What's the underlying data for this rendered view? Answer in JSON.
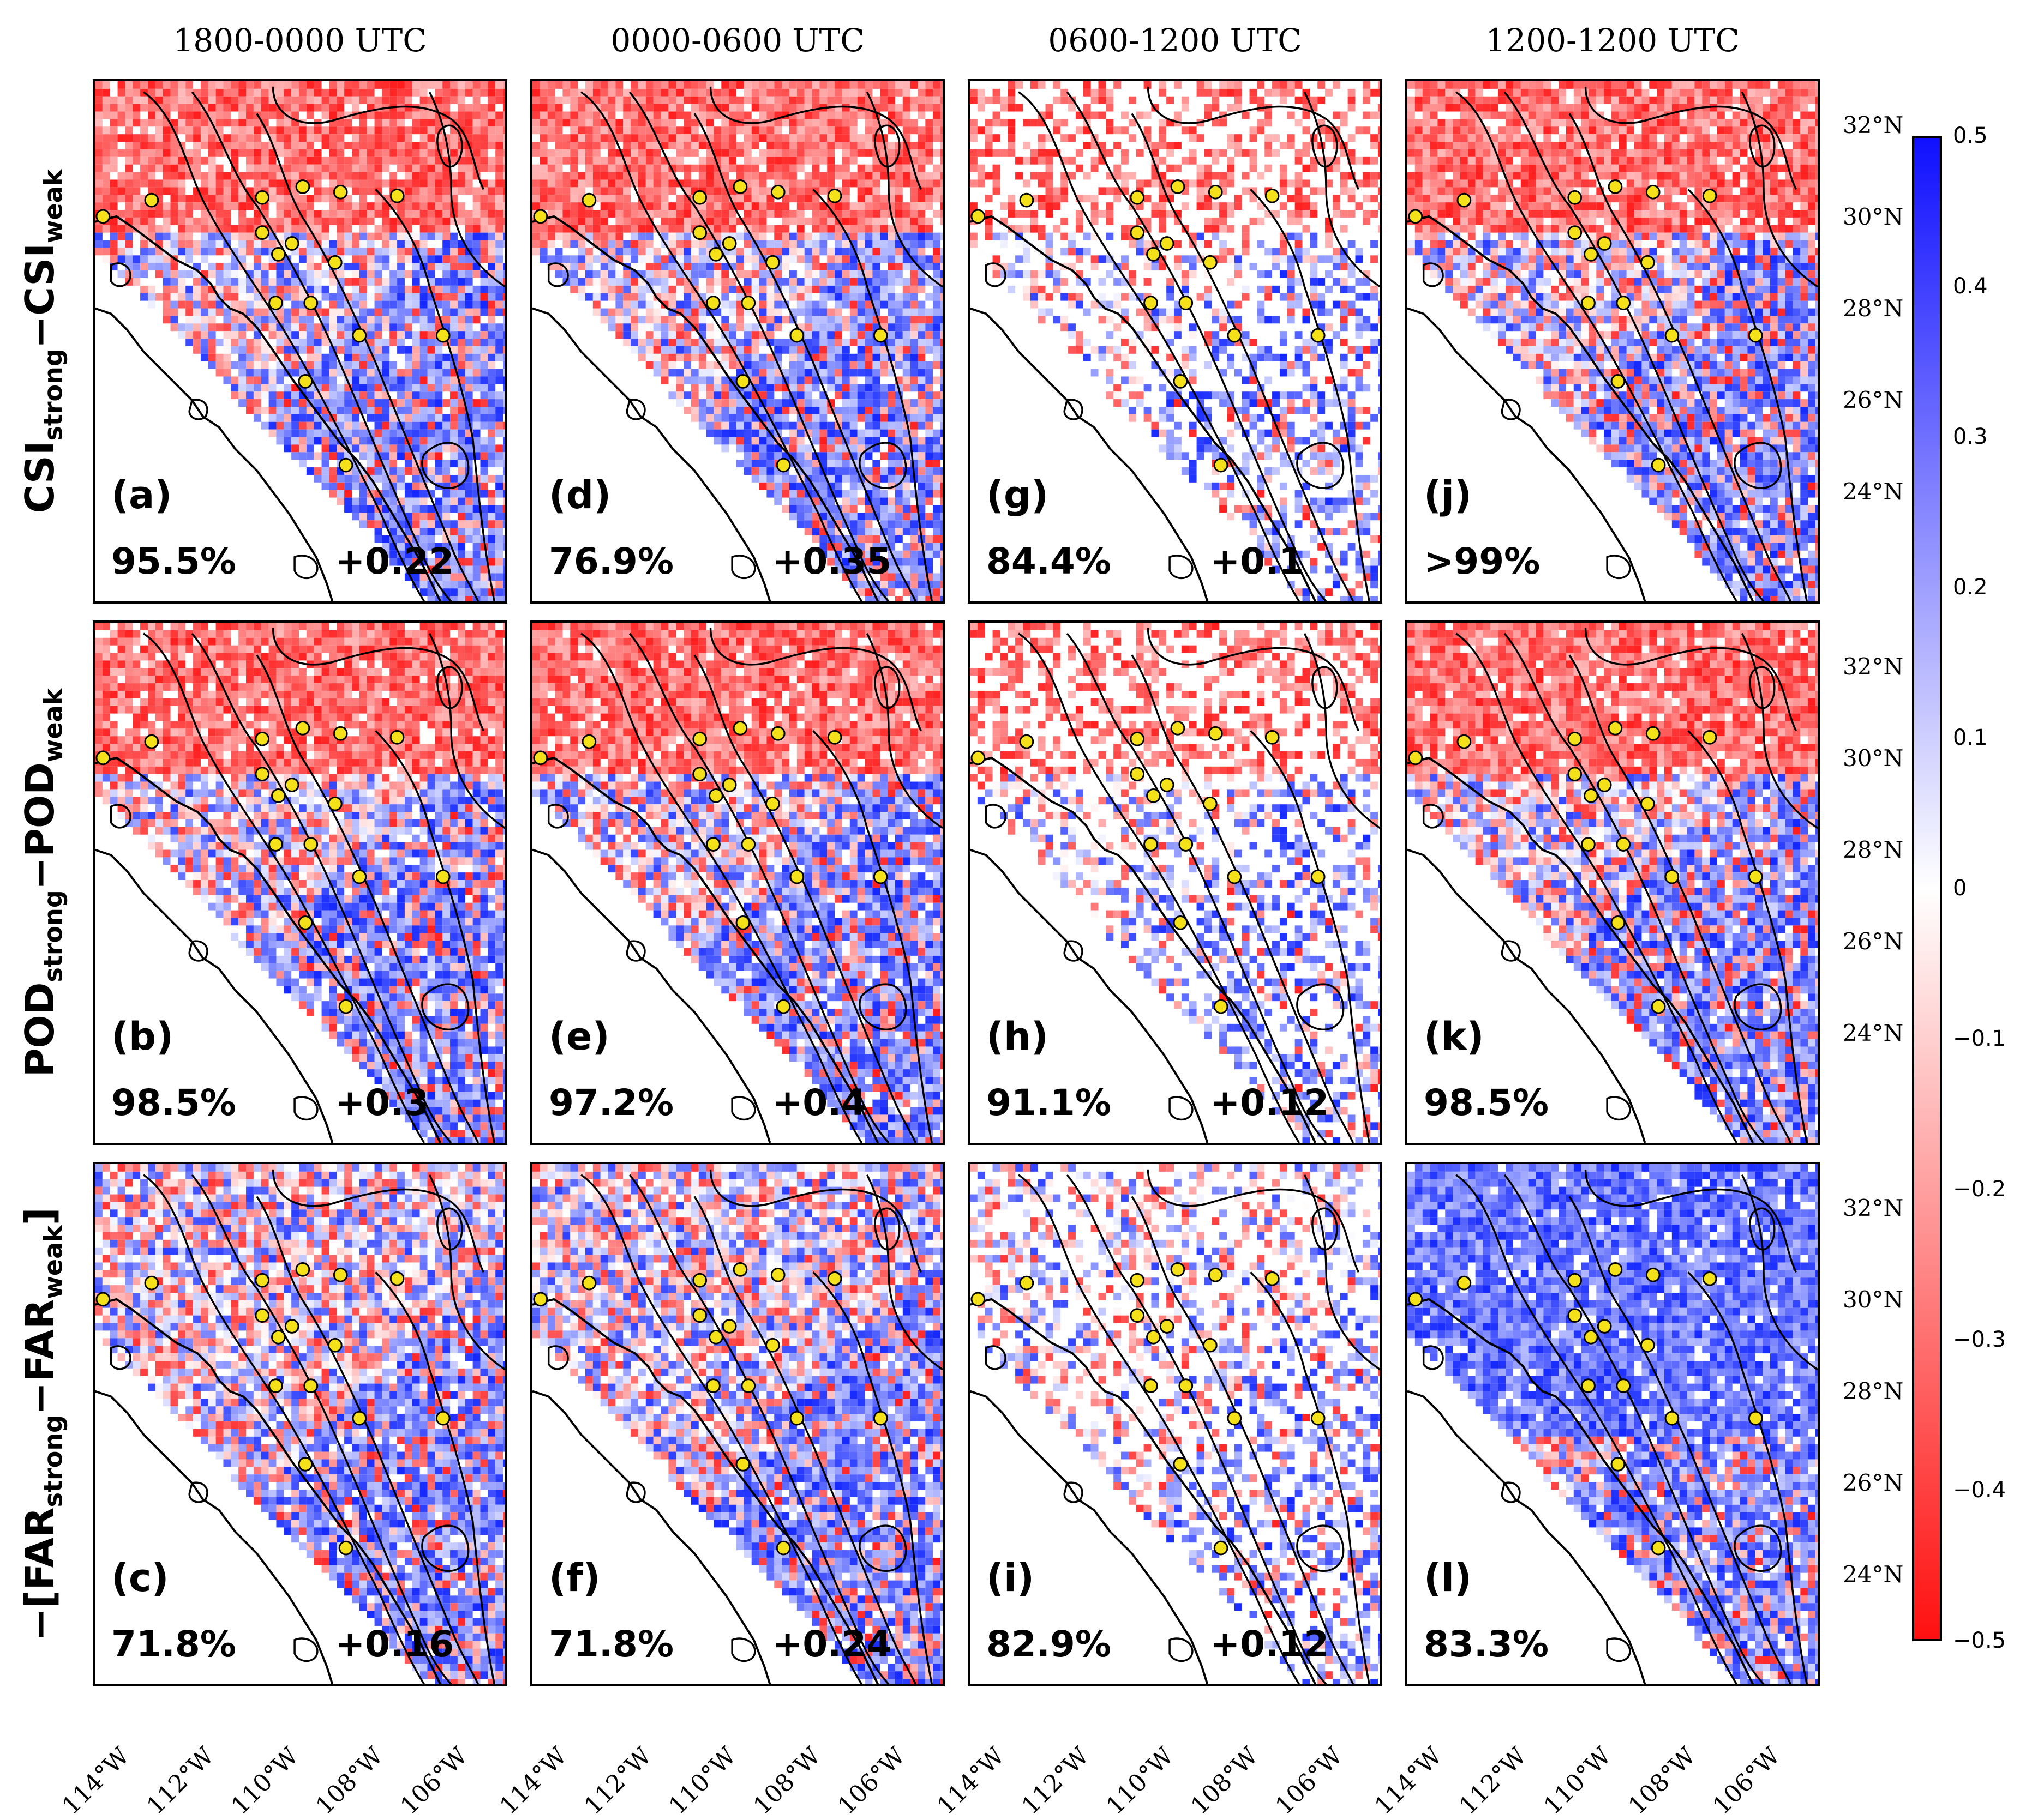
{
  "columns": [
    "1800-0000 UTC",
    "0000-0600 UTC",
    "0600-1200 UTC",
    "1200-1200 UTC"
  ],
  "rows": [
    {
      "main": "CSI",
      "sub1": "strong",
      "mid": "−CSI",
      "sub2": "weak",
      "prefix": "",
      "suffix": ""
    },
    {
      "main": "POD",
      "sub1": "strong",
      "mid": "−POD",
      "sub2": "weak",
      "prefix": "",
      "suffix": ""
    },
    {
      "main": "FAR",
      "sub1": "strong",
      "mid": "−FAR",
      "sub2": "weak",
      "prefix": "−[",
      "suffix": "]"
    }
  ],
  "panels": [
    {
      "letter": "(a)",
      "pct": "95.5%",
      "delta": "+0.22"
    },
    {
      "letter": "(d)",
      "pct": "76.9%",
      "delta": "+0.35"
    },
    {
      "letter": "(g)",
      "pct": "84.4%",
      "delta": "+0.1"
    },
    {
      "letter": "(j)",
      "pct": ">99%",
      "delta": ""
    },
    {
      "letter": "(b)",
      "pct": "98.5%",
      "delta": "+0.3"
    },
    {
      "letter": "(e)",
      "pct": "97.2%",
      "delta": "+0.4"
    },
    {
      "letter": "(h)",
      "pct": "91.1%",
      "delta": "+0.12"
    },
    {
      "letter": "(k)",
      "pct": "98.5%",
      "delta": ""
    },
    {
      "letter": "(c)",
      "pct": "71.8%",
      "delta": "+0.16"
    },
    {
      "letter": "(f)",
      "pct": "71.8%",
      "delta": "+0.24"
    },
    {
      "letter": "(i)",
      "pct": "82.9%",
      "delta": "+0.12"
    },
    {
      "letter": "(l)",
      "pct": "83.3%",
      "delta": ""
    }
  ],
  "lat_labels": [
    "32°N",
    "30°N",
    "28°N",
    "26°N",
    "24°N"
  ],
  "lon_labels": [
    "114°W",
    "112°W",
    "110°W",
    "108°W",
    "106°W"
  ],
  "colorbar": {
    "ticks": [
      "0.5",
      "0.4",
      "0.3",
      "0.2",
      "0.1",
      "0",
      "−0.1",
      "−0.2",
      "−0.3",
      "−0.4",
      "−0.5"
    ],
    "max_color": "#1010ff",
    "mid_color": "#ffffff",
    "min_color": "#ff1010"
  },
  "colors": {
    "station": "#f5e11a",
    "positive": "#1a2cff",
    "negative": "#ff2020"
  }
}
